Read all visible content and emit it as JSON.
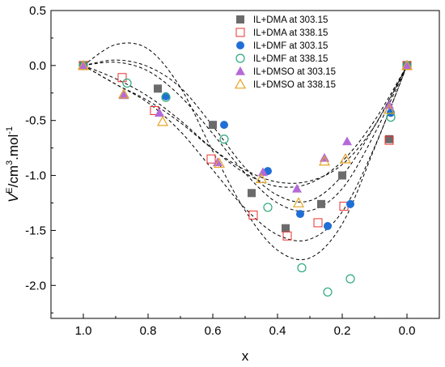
{
  "chart_data": {
    "type": "scatter",
    "xlabel": "x",
    "ylabel_parts": {
      "base": "V",
      "sup1": "E",
      "unit": "/cm",
      "sup2": "3",
      "mid": ".mol",
      "sup3": "-1"
    },
    "xlim": [
      1.1,
      -0.1
    ],
    "ylim": [
      -2.3,
      0.5
    ],
    "xticks": [
      1.0,
      0.8,
      0.6,
      0.4,
      0.2,
      0.0
    ],
    "xtick_labels": [
      "1.0",
      "0.8",
      "0.6",
      "0.4",
      "0.2",
      "0.0"
    ],
    "yticks": [
      0.5,
      0.0,
      -0.5,
      -1.0,
      -1.5,
      -2.0
    ],
    "ytick_labels": [
      "0.5",
      "0.0",
      "-0.5",
      "-1.0",
      "-1.5",
      "-2.0"
    ],
    "grid": false,
    "legend_position": "top-right",
    "series": [
      {
        "name": "IL+DMA at 303.15",
        "marker": "square-filled",
        "color": "#6b6b6b",
        "x": [
          1.0,
          0.77,
          0.6,
          0.48,
          0.375,
          0.265,
          0.2,
          0.055,
          0.0
        ],
        "y": [
          0.0,
          -0.21,
          -0.54,
          -1.16,
          -1.48,
          -1.26,
          -1.0,
          -0.67,
          0.0
        ]
      },
      {
        "name": "IL+DMA at 338.15",
        "marker": "square-open",
        "color": "#e8322e",
        "x": [
          1.0,
          0.88,
          0.78,
          0.605,
          0.475,
          0.37,
          0.275,
          0.195,
          0.055,
          0.0
        ],
        "y": [
          0.0,
          -0.11,
          -0.41,
          -0.85,
          -1.36,
          -1.55,
          -1.43,
          -1.28,
          -0.68,
          0.0
        ]
      },
      {
        "name": "IL+DMF at 303.15",
        "marker": "circle-filled",
        "color": "#1f6fd6",
        "x": [
          1.0,
          0.745,
          0.565,
          0.43,
          0.33,
          0.245,
          0.175,
          0.05,
          0.0
        ],
        "y": [
          0.0,
          -0.28,
          -0.54,
          -0.96,
          -1.35,
          -1.46,
          -1.26,
          -0.43,
          0.0
        ]
      },
      {
        "name": "IL+DMF at 338.15",
        "marker": "circle-open",
        "color": "#2aa87a",
        "x": [
          1.0,
          0.865,
          0.745,
          0.565,
          0.43,
          0.325,
          0.245,
          0.175,
          0.05,
          0.0
        ],
        "y": [
          0.0,
          -0.16,
          -0.29,
          -0.67,
          -1.29,
          -1.84,
          -2.06,
          -1.94,
          -0.47,
          0.0
        ]
      },
      {
        "name": "IL+DMSO at 303.15",
        "marker": "triangle-filled",
        "color": "#b36ad8",
        "x": [
          1.0,
          0.875,
          0.765,
          0.585,
          0.445,
          0.34,
          0.255,
          0.185,
          0.055,
          0.0
        ],
        "y": [
          0.0,
          -0.27,
          -0.43,
          -0.88,
          -0.97,
          -1.12,
          -0.84,
          -0.69,
          -0.36,
          0.0
        ]
      },
      {
        "name": "IL+DMSO at 338.15",
        "marker": "triangle-open",
        "color": "#e5a323",
        "x": [
          1.0,
          0.875,
          0.755,
          0.58,
          0.45,
          0.335,
          0.255,
          0.19,
          0.055,
          0.0
        ],
        "y": [
          0.0,
          -0.26,
          -0.51,
          -0.89,
          -1.03,
          -1.25,
          -0.87,
          -0.85,
          -0.4,
          0.0
        ]
      }
    ],
    "fit_curves": [
      {
        "style": "dashed",
        "x": [
          1.0,
          0.9,
          0.8,
          0.7,
          0.6,
          0.5,
          0.4,
          0.3,
          0.2,
          0.1,
          0.0
        ],
        "y": [
          0.0,
          0.03,
          -0.05,
          -0.28,
          -0.62,
          -0.98,
          -1.25,
          -1.32,
          -1.12,
          -0.62,
          0.0
        ]
      },
      {
        "style": "dashed",
        "x": [
          1.0,
          0.9,
          0.8,
          0.7,
          0.6,
          0.5,
          0.4,
          0.3,
          0.2,
          0.1,
          0.0
        ],
        "y": [
          0.0,
          0.05,
          -0.01,
          -0.2,
          -0.55,
          -0.93,
          -1.18,
          -1.23,
          -1.0,
          -0.55,
          0.0
        ]
      },
      {
        "style": "dashed",
        "x": [
          1.0,
          0.9,
          0.8,
          0.7,
          0.6,
          0.5,
          0.4,
          0.3,
          0.2,
          0.1,
          0.0
        ],
        "y": [
          0.0,
          -0.17,
          -0.34,
          -0.6,
          -0.95,
          -1.3,
          -1.54,
          -1.58,
          -1.33,
          -0.74,
          0.0
        ]
      },
      {
        "style": "dashed",
        "x": [
          1.0,
          0.9,
          0.8,
          0.7,
          0.6,
          0.5,
          0.4,
          0.3,
          0.2,
          0.1,
          0.0
        ],
        "y": [
          0.0,
          0.19,
          0.15,
          -0.2,
          -0.78,
          -1.32,
          -1.68,
          -1.75,
          -1.44,
          -0.75,
          0.0
        ]
      },
      {
        "style": "dashed",
        "x": [
          1.0,
          0.9,
          0.8,
          0.7,
          0.6,
          0.5,
          0.4,
          0.3,
          0.2,
          0.1,
          0.0
        ],
        "y": [
          0.0,
          -0.17,
          -0.32,
          -0.52,
          -0.76,
          -0.95,
          -1.06,
          -1.05,
          -0.9,
          -0.55,
          0.0
        ]
      },
      {
        "style": "dashed",
        "x": [
          1.0,
          0.9,
          0.8,
          0.7,
          0.6,
          0.5,
          0.4,
          0.3,
          0.2,
          0.1,
          0.0
        ],
        "y": [
          0.0,
          -0.12,
          -0.28,
          -0.5,
          -0.76,
          -0.98,
          -1.1,
          -1.07,
          -0.87,
          -0.5,
          0.0
        ]
      }
    ]
  }
}
